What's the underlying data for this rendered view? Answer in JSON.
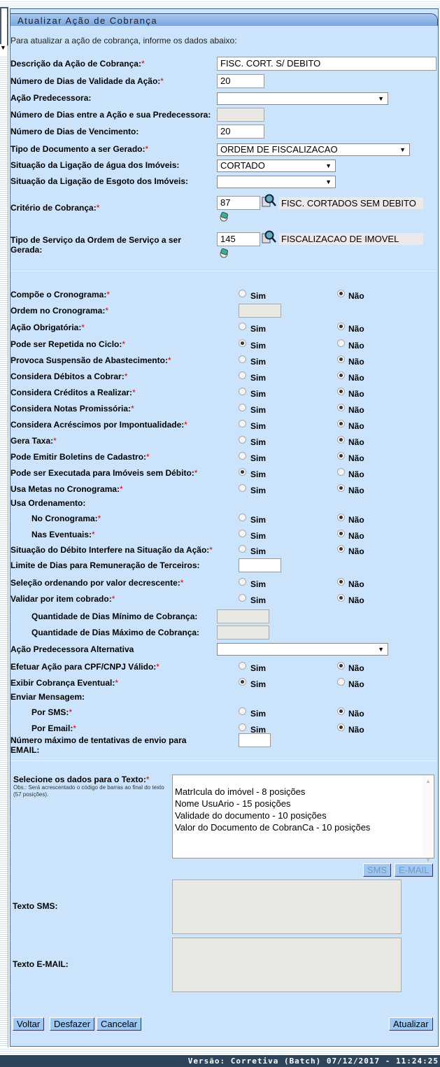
{
  "title": "Atualizar Ação de Cobrança",
  "intro": "Para atualizar a ação de cobrança, informe os dados abaixo:",
  "fields": {
    "descricao": {
      "label": "Descrição da Ação de Cobrança:",
      "required": true,
      "value": "FISC. CORT. S/ DEBITO"
    },
    "dias_validade": {
      "label": "Número de Dias de Validade da Ação:",
      "required": true,
      "value": "20"
    },
    "acao_predecessora": {
      "label": "Ação Predecessora:",
      "required": false,
      "value": ""
    },
    "dias_entre": {
      "label": "Número de Dias entre a Ação e sua Predecessora:",
      "required": false,
      "value": ""
    },
    "dias_vencimento": {
      "label": "Número de Dias de Vencimento:",
      "required": false,
      "value": "20"
    },
    "tipo_documento": {
      "label": "Tipo de Documento a ser Gerado:",
      "required": true,
      "value": "ORDEM DE FISCALIZACAO"
    },
    "sit_agua": {
      "label": "Situação da Ligação de água dos Imóveis:",
      "required": false,
      "value": "CORTADO"
    },
    "sit_esgoto": {
      "label": "Situação da Ligação de Esgoto dos Imóveis:",
      "required": false,
      "value": ""
    },
    "criterio": {
      "label": "Critério de Cobrança:",
      "required": true,
      "code": "87",
      "description": "FISC. CORTADOS SEM DEBITO"
    },
    "tipo_servico": {
      "label": "Tipo de Serviço da Ordem de Serviço a ser Gerada:",
      "required": false,
      "code": "145",
      "description": "FISCALIZACAO DE IMOVEL"
    }
  },
  "radio_labels": {
    "yes": "Sim",
    "no": "Não"
  },
  "options": [
    {
      "label": "Compõe o Cronograma:",
      "required": true,
      "kind": "radio",
      "value": "Não"
    },
    {
      "label": "Ordem no Cronograma:",
      "required": true,
      "kind": "input-disabled",
      "value": ""
    },
    {
      "label": "Ação Obrigatória:",
      "required": true,
      "kind": "radio",
      "value": "Não"
    },
    {
      "label": "Pode ser Repetida no Ciclo:",
      "required": true,
      "kind": "radio",
      "value": "Sim"
    },
    {
      "label": "Provoca Suspensão de Abastecimento:",
      "required": true,
      "kind": "radio",
      "value": "Não"
    },
    {
      "label": "Considera Débitos a Cobrar:",
      "required": true,
      "kind": "radio",
      "value": "Não"
    },
    {
      "label": "Considera Créditos a Realizar:",
      "required": true,
      "kind": "radio",
      "value": "Não"
    },
    {
      "label": "Considera Notas Promissória:",
      "required": true,
      "kind": "radio",
      "value": "Não"
    },
    {
      "label": "Considera Acréscimos por Impontualidade:",
      "required": true,
      "kind": "radio",
      "value": "Não"
    },
    {
      "label": "Gera Taxa:",
      "required": true,
      "kind": "radio",
      "value": "Não"
    },
    {
      "label": "Pode Emitir Boletins de Cadastro:",
      "required": true,
      "kind": "radio",
      "value": "Não"
    },
    {
      "label": "Pode ser Executada para Imóveis sem Débito:",
      "required": true,
      "kind": "radio",
      "value": "Sim"
    },
    {
      "label": "Usa Metas no Cronograma:",
      "required": true,
      "kind": "radio",
      "value": "Não"
    },
    {
      "label": "Usa Ordenamento:",
      "required": false,
      "kind": "heading",
      "value": ""
    },
    {
      "label": "No Cronograma:",
      "required": true,
      "kind": "radio",
      "indent": true,
      "value": "Não"
    },
    {
      "label": "Nas Eventuais:",
      "required": true,
      "kind": "radio",
      "indent": true,
      "value": "Não"
    },
    {
      "label": "Situação do Débito Interfere na Situação da Ação:",
      "required": true,
      "kind": "radio",
      "value": "Não"
    },
    {
      "label": "Limite de Dias para Remuneração de Terceiros:",
      "required": false,
      "kind": "input",
      "value": ""
    },
    {
      "label": "Seleção ordenando por valor decrescente:",
      "required": true,
      "kind": "radio",
      "value": "Não"
    },
    {
      "label": "Validar por item cobrado:",
      "required": true,
      "kind": "radio",
      "value": "Não"
    },
    {
      "label": "Quantidade de Dias Mínimo de Cobrança:",
      "required": false,
      "kind": "input-disabled-wide",
      "indent": true,
      "value": ""
    },
    {
      "label": "Quantidade de Dias Máximo de Cobrança:",
      "required": false,
      "kind": "input-disabled-wide",
      "indent": true,
      "value": ""
    },
    {
      "label": "Ação Predecessora Alternativa",
      "required": false,
      "kind": "select",
      "value": ""
    },
    {
      "label": "Efetuar Ação para CPF/CNPJ Válido:",
      "required": true,
      "kind": "radio",
      "value": "Não"
    },
    {
      "label": "Exibir Cobrança Eventual:",
      "required": true,
      "kind": "radio",
      "value": "Sim"
    },
    {
      "label": "Enviar Mensagem:",
      "required": false,
      "kind": "heading",
      "value": ""
    },
    {
      "label": "Por SMS:",
      "required": true,
      "kind": "radio",
      "indent": true,
      "value": "Não"
    },
    {
      "label": "Por Email:",
      "required": true,
      "kind": "radio",
      "indent": true,
      "value": "Não"
    },
    {
      "label": "Número máximo de tentativas de envio para EMAIL:",
      "required": false,
      "kind": "input-2line",
      "value": ""
    }
  ],
  "texto": {
    "label": "Selecione os dados para o Texto:",
    "required": true,
    "note": "Obs.: Será acrescentado o código de barras ao final do texto (57 posições).",
    "items": [
      "MatrIcula do imóvel - 8 posições",
      "Nome UsuArio - 15 posições",
      "Validade do documento - 10 posições",
      "Valor do Documento de CobranCa - 10 posições"
    ],
    "sms_button": "SMS",
    "email_button": "E-MAIL",
    "texto_sms_label": "Texto SMS:",
    "texto_email_label": "Texto E-MAIL:"
  },
  "buttons": {
    "voltar": "Voltar",
    "desfazer": "Desfazer",
    "cancelar": "Cancelar",
    "atualizar": "Atualizar"
  },
  "footer": "Versão: Corretiva (Batch) 07/12/2017 - 11:24:25",
  "colors": {
    "panel": "#cbe4fb",
    "button": "#9cc8f2",
    "footer": "#2f455a",
    "required": "#dd0000"
  }
}
